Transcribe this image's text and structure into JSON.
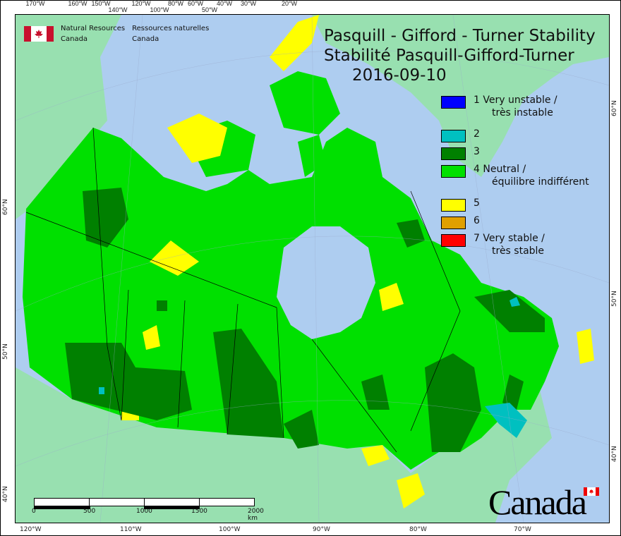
{
  "title": {
    "line1": "Pasquill - Gifford - Turner Stability",
    "line2": "Stabilité Pasquill-Gifford-Turner",
    "date": "2016-09-10"
  },
  "agency": {
    "en_line1": "Natural Resources",
    "en_line2": "Canada",
    "fr_line1": "Ressources naturelles",
    "fr_line2": "Canada"
  },
  "wordmark": "Canada",
  "legend": [
    {
      "label": "1 Very unstable /",
      "label2": "très instable",
      "color": "#0000ff"
    },
    {
      "label": "2",
      "label2": "",
      "color": "#00c0c0"
    },
    {
      "label": "3",
      "label2": "",
      "color": "#008000"
    },
    {
      "label": "4 Neutral /",
      "label2": "équilibre indifférent",
      "color": "#00e000"
    },
    {
      "label": "5",
      "label2": "",
      "color": "#ffff00"
    },
    {
      "label": "6",
      "label2": "",
      "color": "#e0a000"
    },
    {
      "label": "7 Very stable /",
      "label2": "très stable",
      "color": "#ff0000"
    }
  ],
  "top_ticks": [
    "170°W",
    "160°W",
    "150°W",
    "140°W",
    "120°W",
    "100°W",
    "80°W",
    "60°W",
    "50°W",
    "40°W",
    "30°W",
    "20°W"
  ],
  "bottom_ticks": [
    "120°W",
    "110°W",
    "100°W",
    "90°W",
    "80°W",
    "70°W"
  ],
  "left_ticks": [
    "60°N",
    "50°N",
    "40°N"
  ],
  "right_ticks": [
    "60°N",
    "50°N",
    "40°N"
  ],
  "scale": {
    "labels": [
      "0",
      "500",
      "1000",
      "1500",
      "2000 km"
    ]
  },
  "colors": {
    "ocean": "#aecdf0",
    "foreign_land": "#98e0b0"
  }
}
